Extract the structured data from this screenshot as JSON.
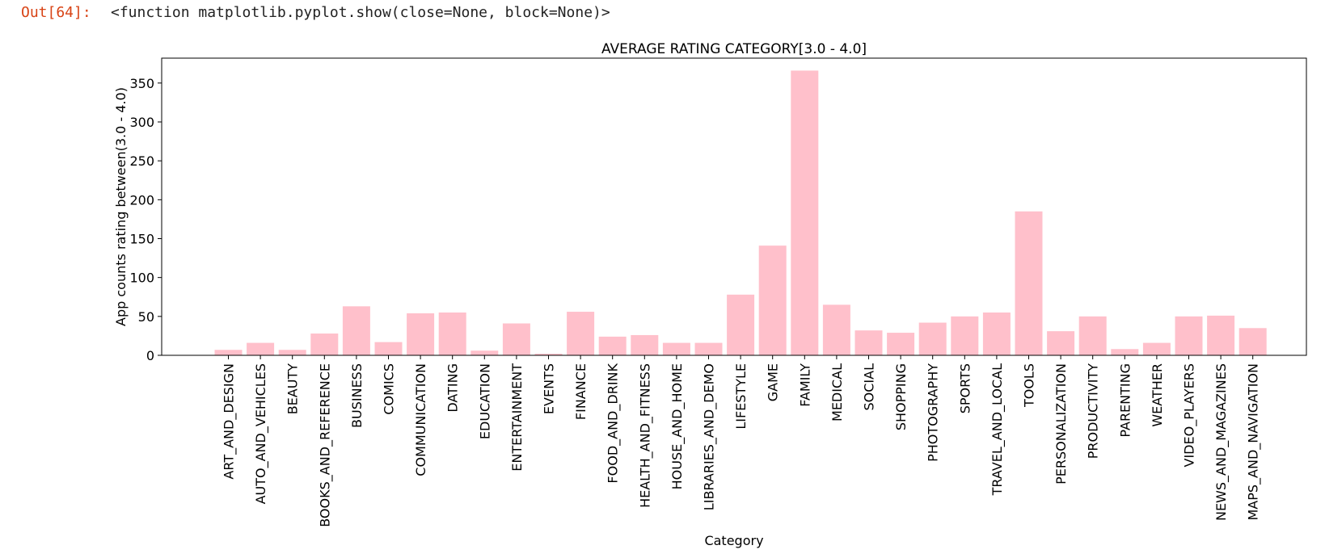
{
  "output": {
    "prompt": "Out[64]:",
    "text": "<function matplotlib.pyplot.show(close=None, block=None)>"
  },
  "chart_data": {
    "type": "bar",
    "title": "AVERAGE RATING CATEGORY[3.0 - 4.0]",
    "xlabel": "Category",
    "ylabel": "App counts rating between(3.0 - 4.0)",
    "ylim": [
      0,
      382
    ],
    "yticks": [
      0,
      50,
      100,
      150,
      200,
      250,
      300,
      350
    ],
    "bar_color": "#ffc0cb",
    "grid": false,
    "categories": [
      "ART_AND_DESIGN",
      "AUTO_AND_VEHICLES",
      "BEAUTY",
      "BOOKS_AND_REFERENCE",
      "BUSINESS",
      "COMICS",
      "COMMUNICATION",
      "DATING",
      "EDUCATION",
      "ENTERTAINMENT",
      "EVENTS",
      "FINANCE",
      "FOOD_AND_DRINK",
      "HEALTH_AND_FITNESS",
      "HOUSE_AND_HOME",
      "LIBRARIES_AND_DEMO",
      "LIFESTYLE",
      "GAME",
      "FAMILY",
      "MEDICAL",
      "SOCIAL",
      "SHOPPING",
      "PHOTOGRAPHY",
      "SPORTS",
      "TRAVEL_AND_LOCAL",
      "TOOLS",
      "PERSONALIZATION",
      "PRODUCTIVITY",
      "PARENTING",
      "WEATHER",
      "VIDEO_PLAYERS",
      "NEWS_AND_MAGAZINES",
      "MAPS_AND_NAVIGATION"
    ],
    "values": [
      7,
      16,
      7,
      28,
      63,
      17,
      54,
      55,
      6,
      41,
      2,
      56,
      24,
      26,
      16,
      16,
      78,
      141,
      366,
      65,
      32,
      29,
      42,
      50,
      55,
      185,
      31,
      50,
      8,
      16,
      50,
      51,
      35
    ]
  }
}
